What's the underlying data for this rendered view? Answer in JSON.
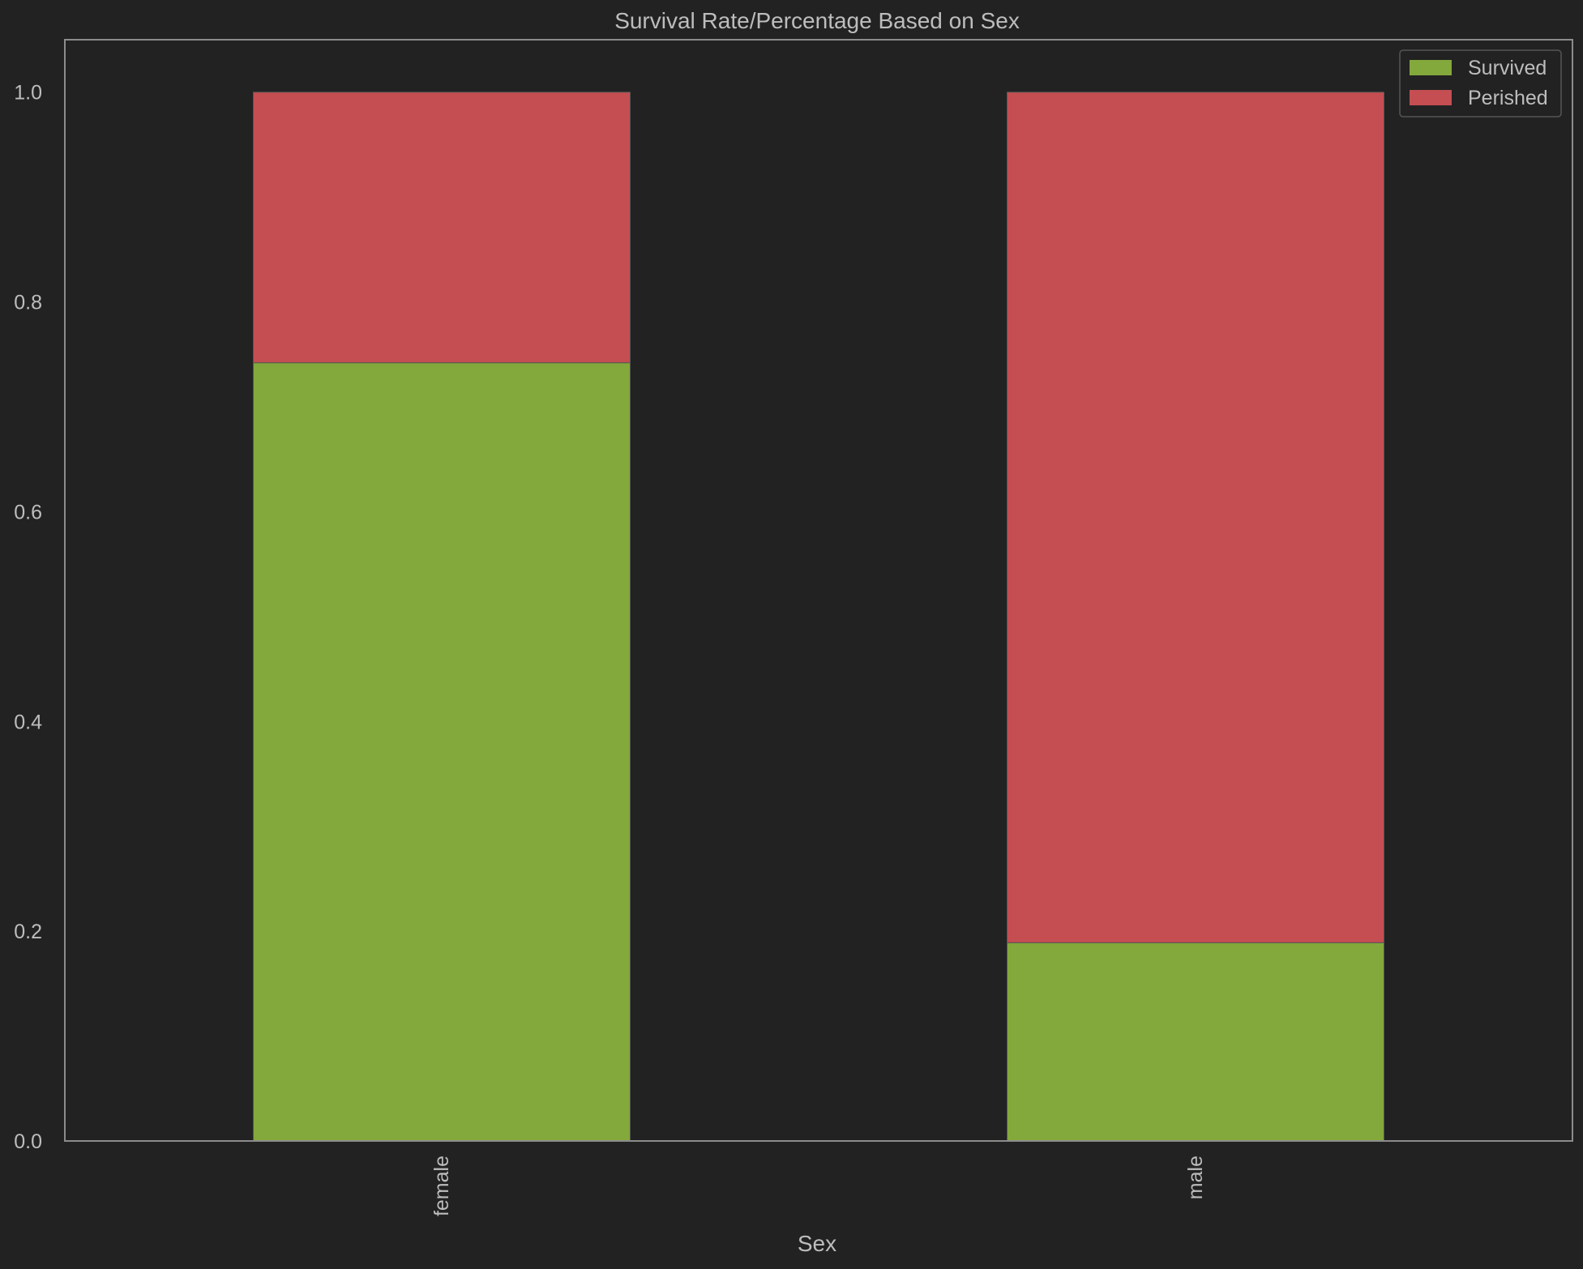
{
  "chart_data": {
    "type": "bar",
    "stacked": true,
    "title": "Survival Rate/Percentage Based on Sex",
    "xlabel": "Sex",
    "ylabel": "",
    "categories": [
      "female",
      "male"
    ],
    "series": [
      {
        "name": "Survived",
        "values": [
          0.742,
          0.189
        ],
        "color": "#83a83b"
      },
      {
        "name": "Perished",
        "values": [
          0.258,
          0.811
        ],
        "color": "#c44e52"
      }
    ],
    "ylim": [
      0,
      1.05
    ],
    "yticks": [
      0.0,
      0.2,
      0.4,
      0.6,
      0.8,
      1.0
    ],
    "ytick_labels": [
      "0.0",
      "0.2",
      "0.4",
      "0.6",
      "0.8",
      "1.0"
    ],
    "grid": false,
    "legend_position": "top-right",
    "colors": {
      "background": "#222222",
      "axes_edge": "#8c8c8c",
      "text": "#bdbdbd"
    }
  }
}
